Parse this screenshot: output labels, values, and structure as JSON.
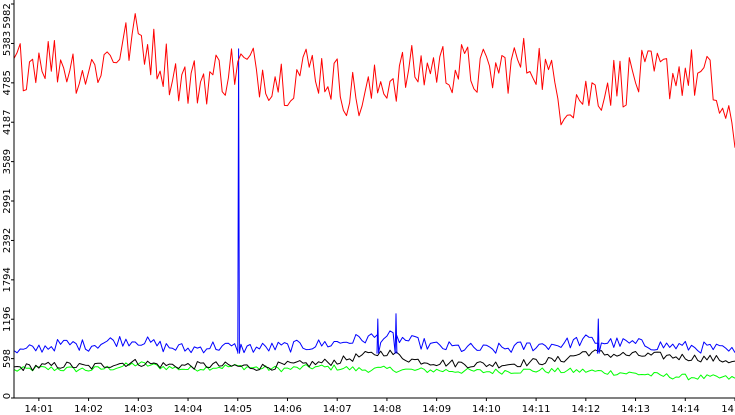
{
  "chart_data": {
    "type": "line",
    "title": "",
    "xlabel": "",
    "ylabel": "",
    "ylim": [
      0,
      5982
    ],
    "xlim": [
      "14:00:30",
      "14:15:00"
    ],
    "grid": false,
    "legend": "none",
    "y_ticks": [
      0,
      598,
      1196,
      1794,
      2392,
      2991,
      3589,
      4187,
      4785,
      5383,
      5982
    ],
    "x_ticks": [
      "14:01",
      "14:02",
      "14:03",
      "14:04",
      "14:05",
      "14:06",
      "14:07",
      "14:08",
      "14:09",
      "14:10",
      "14:11",
      "14:12",
      "14:13",
      "14:14",
      "14"
    ],
    "x": [
      "14:00:30",
      "14:01:00",
      "14:01:30",
      "14:02:00",
      "14:02:30",
      "14:03:00",
      "14:03:30",
      "14:04:00",
      "14:04:30",
      "14:05:00",
      "14:05:30",
      "14:06:00",
      "14:06:30",
      "14:07:00",
      "14:07:30",
      "14:08:00",
      "14:08:30",
      "14:09:00",
      "14:09:30",
      "14:10:00",
      "14:10:30",
      "14:11:00",
      "14:11:30",
      "14:12:00",
      "14:12:30",
      "14:13:00",
      "14:13:30",
      "14:14:00",
      "14:14:30",
      "14:15:00"
    ],
    "series": [
      {
        "color": "#ff0000",
        "values": [
          5000,
          5200,
          5100,
          4950,
          5250,
          5500,
          5100,
          4750,
          4900,
          5050,
          4950,
          4850,
          5050,
          4800,
          4500,
          4850,
          4950,
          5050,
          5000,
          4900,
          5050,
          5150,
          4550,
          4600,
          4800,
          4850,
          4900,
          4950,
          4800,
          3800
        ]
      },
      {
        "color": "#0000ff",
        "values": [
          680,
          760,
          820,
          800,
          870,
          880,
          780,
          740,
          790,
          760,
          760,
          780,
          800,
          840,
          900,
          940,
          860,
          780,
          760,
          730,
          760,
          800,
          820,
          880,
          840,
          820,
          800,
          780,
          760,
          690
        ]
      },
      {
        "color": "#000000",
        "values": [
          460,
          480,
          500,
          470,
          520,
          540,
          500,
          490,
          500,
          480,
          470,
          500,
          520,
          560,
          640,
          700,
          580,
          540,
          520,
          510,
          520,
          550,
          580,
          700,
          660,
          650,
          640,
          620,
          600,
          560
        ]
      },
      {
        "color": "#00ff00",
        "values": [
          420,
          450,
          440,
          430,
          460,
          520,
          470,
          440,
          470,
          480,
          450,
          440,
          470,
          460,
          430,
          440,
          420,
          420,
          410,
          400,
          410,
          420,
          410,
          410,
          390,
          370,
          340,
          320,
          310,
          300
        ]
      }
    ],
    "spikes": [
      {
        "series": 1,
        "x": "14:05:01",
        "value": 5300
      },
      {
        "series": 1,
        "x": "14:07:49",
        "value": 1200
      },
      {
        "series": 1,
        "x": "14:08:11",
        "value": 1280
      },
      {
        "series": 1,
        "x": "14:12:15",
        "value": 1200
      }
    ]
  }
}
